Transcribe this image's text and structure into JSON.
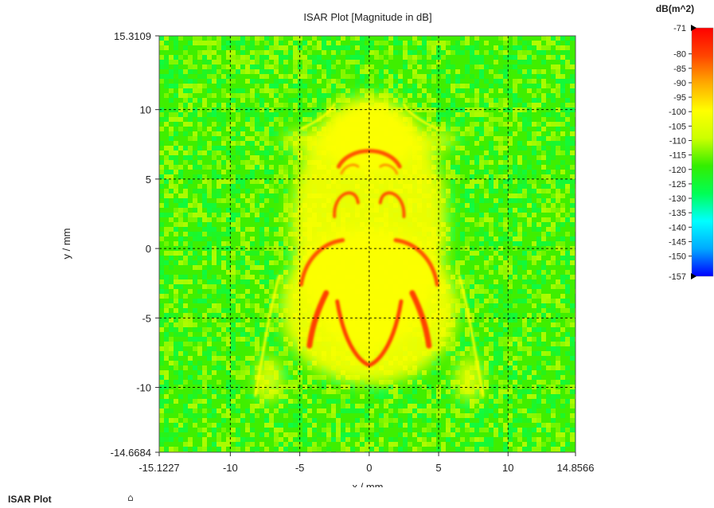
{
  "chart_data": {
    "type": "heatmap",
    "title": "ISAR Plot [Magnitude in dB]",
    "xlabel": "x / mm",
    "ylabel": "y / mm",
    "xlim": [
      -15.1227,
      14.8566
    ],
    "ylim": [
      -14.6684,
      15.3109
    ],
    "x_ticks": [
      {
        "value": -15.1227,
        "label": "-15.1227"
      },
      {
        "value": -10,
        "label": "-10"
      },
      {
        "value": -5,
        "label": "-5"
      },
      {
        "value": 0,
        "label": "0"
      },
      {
        "value": 5,
        "label": "5"
      },
      {
        "value": 10,
        "label": "10"
      },
      {
        "value": 14.8566,
        "label": "14.8566"
      }
    ],
    "y_ticks": [
      {
        "value": 15.3109,
        "label": "15.3109"
      },
      {
        "value": 10,
        "label": "10"
      },
      {
        "value": 5,
        "label": "5"
      },
      {
        "value": 0,
        "label": "0"
      },
      {
        "value": -5,
        "label": "-5"
      },
      {
        "value": -10,
        "label": "-10"
      },
      {
        "value": -14.6684,
        "label": "-14.6684"
      }
    ],
    "grid": true,
    "colorbar": {
      "title": "dB(m^2)",
      "min": -157,
      "max": -71,
      "min_label": "-157",
      "max_label": "-71",
      "ticks": [
        "-80",
        "-85",
        "-90",
        "-95",
        "-100",
        "-105",
        "-110",
        "-115",
        "-120",
        "-125",
        "-130",
        "-135",
        "-140",
        "-145",
        "-150"
      ],
      "colors": [
        "#0000ff",
        "#00aaff",
        "#00ffff",
        "#00ff55",
        "#33ee00",
        "#ccff00",
        "#ffff00",
        "#ffaa00",
        "#ff4400",
        "#ff0000"
      ]
    },
    "background_level_db": -118,
    "features_db": {
      "body_outline": -88,
      "upper_arc": -82,
      "side_wings": -80,
      "diffuse_body": -100
    }
  },
  "footer": {
    "title": "ISAR Plot",
    "collapse_icon": "⌂"
  }
}
